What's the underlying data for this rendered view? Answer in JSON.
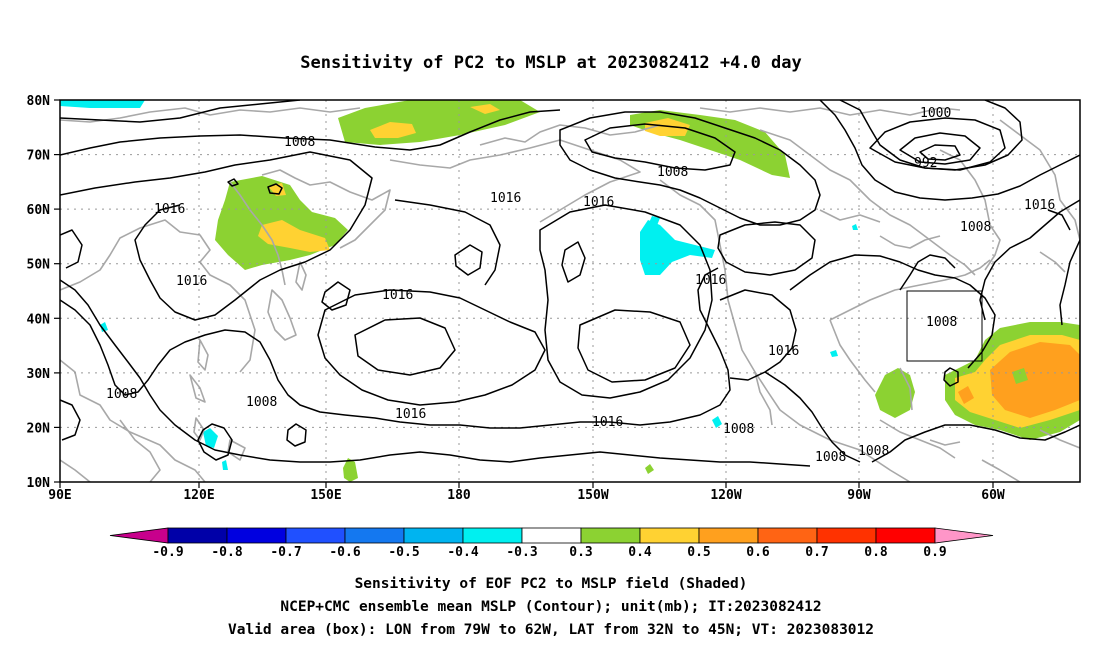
{
  "title": "Sensitivity of PC2 to MSLP at 2023082412 +4.0 day",
  "lat_labels": [
    "80N",
    "70N",
    "60N",
    "50N",
    "40N",
    "30N",
    "20N",
    "10N"
  ],
  "lon_labels": [
    "90E",
    "120E",
    "150E",
    "180",
    "150W",
    "120W",
    "90W",
    "60W"
  ],
  "contour_labels": [
    "1008",
    "1016",
    "1016",
    "1016",
    "1016",
    "1016",
    "1016",
    "1016",
    "1016",
    "1016",
    "1008",
    "1000",
    "992",
    "1008",
    "1016",
    "1008",
    "1008",
    "1008",
    "1008",
    "1008",
    "1008"
  ],
  "colorbar": {
    "labels": [
      "-0.9",
      "-0.8",
      "-0.7",
      "-0.6",
      "-0.5",
      "-0.4",
      "-0.3",
      "0.3",
      "0.4",
      "0.5",
      "0.6",
      "0.7",
      "0.8",
      "0.9"
    ],
    "colors": [
      "#c8008c",
      "#0000a8",
      "#0000e0",
      "#2050ff",
      "#1478f0",
      "#00b4f0",
      "#00f0f0",
      "#ffffff",
      "#8cd232",
      "#ffd232",
      "#ffa01e",
      "#ff6414",
      "#ff3200",
      "#ff0000",
      "#ff96c8"
    ]
  },
  "caption": [
    "Sensitivity of EOF PC2 to MSLP field (Shaded)",
    "NCEP+CMC ensemble mean MSLP (Contour); unit(mb); IT:2023082412",
    "Valid area (box): LON from 79W to 62W, LAT from 32N to 45N; VT: 2023083012"
  ],
  "valid_box": {
    "lon": [
      -79,
      -62
    ],
    "lat": [
      32,
      45
    ]
  },
  "map_extent": {
    "lon": [
      90,
      310
    ],
    "lat": [
      10,
      80
    ]
  }
}
